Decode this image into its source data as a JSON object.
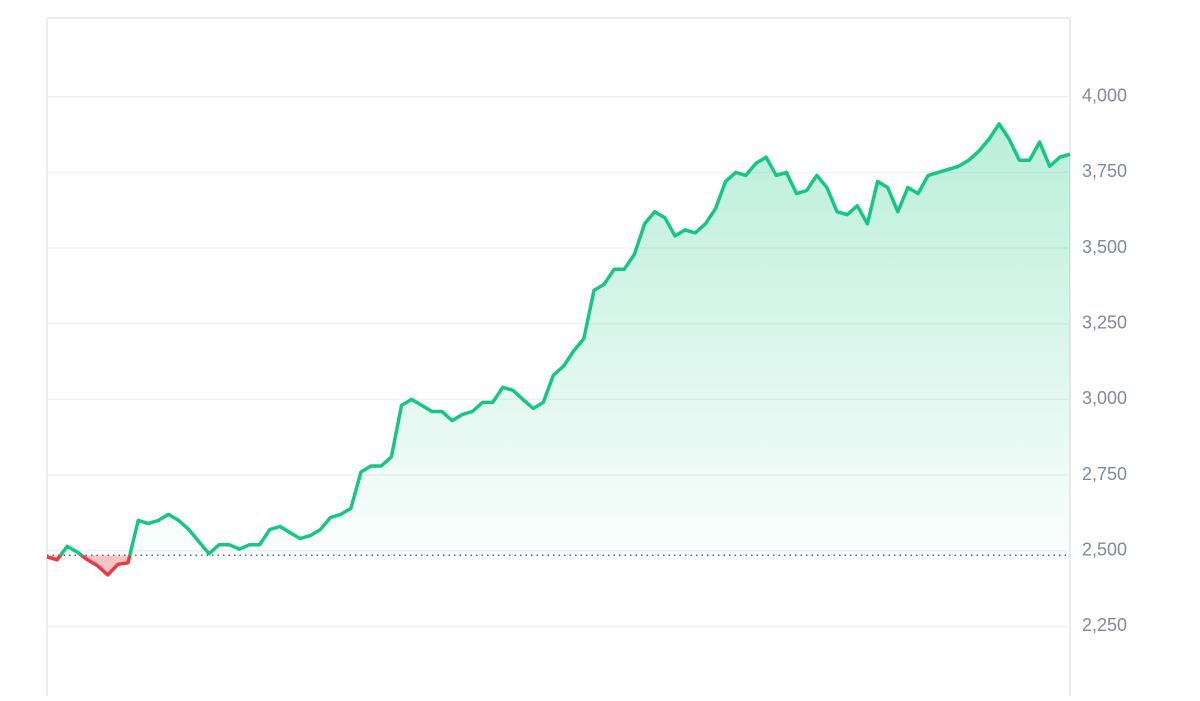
{
  "chart_data": {
    "type": "line",
    "baseline": 2485,
    "color_up": "#16c784",
    "color_down": "#ea3943",
    "grid": true,
    "ylim": [
      2020,
      4260
    ],
    "yticks": [
      {
        "value": 2250,
        "label": "2,250"
      },
      {
        "value": 2500,
        "label": "2,500"
      },
      {
        "value": 2750,
        "label": "2,750"
      },
      {
        "value": 3000,
        "label": "3,000"
      },
      {
        "value": 3250,
        "label": "3,250"
      },
      {
        "value": 3500,
        "label": "3,500"
      },
      {
        "value": 3750,
        "label": "3,750"
      },
      {
        "value": 4000,
        "label": "4,000"
      }
    ],
    "values": [
      2480,
      2470,
      2515,
      2495,
      2470,
      2450,
      2420,
      2455,
      2460,
      2600,
      2590,
      2600,
      2620,
      2600,
      2570,
      2530,
      2490,
      2520,
      2520,
      2505,
      2520,
      2520,
      2570,
      2580,
      2560,
      2540,
      2550,
      2570,
      2610,
      2620,
      2640,
      2760,
      2780,
      2780,
      2810,
      2980,
      3000,
      2980,
      2960,
      2960,
      2930,
      2950,
      2960,
      2990,
      2990,
      3040,
      3030,
      3000,
      2970,
      2990,
      3080,
      3110,
      3160,
      3200,
      3360,
      3380,
      3430,
      3430,
      3480,
      3580,
      3620,
      3600,
      3540,
      3560,
      3550,
      3580,
      3630,
      3720,
      3750,
      3740,
      3780,
      3800,
      3740,
      3750,
      3680,
      3690,
      3740,
      3700,
      3620,
      3610,
      3640,
      3580,
      3720,
      3700,
      3620,
      3700,
      3680,
      3740,
      3750,
      3760,
      3770,
      3790,
      3820,
      3860,
      3910,
      3860,
      3790,
      3790,
      3850,
      3770,
      3800,
      3810
    ]
  }
}
